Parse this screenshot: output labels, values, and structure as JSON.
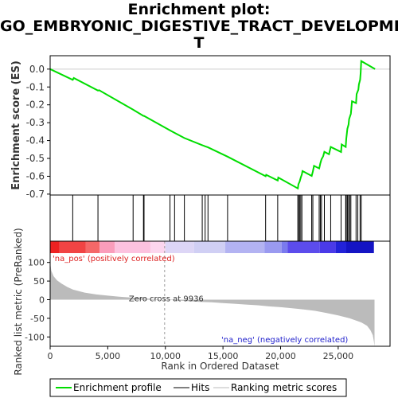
{
  "title_lines": [
    "Enrichment plot:",
    "GO_EMBRYONIC_DIGESTIVE_TRACT_DEVELOPMEN",
    "T"
  ],
  "chart_data": [
    {
      "type": "line",
      "name": "enrichment",
      "ylabel": "Enrichment score (ES)",
      "ylim": [
        -0.705,
        0.075
      ],
      "xlim": [
        0,
        29500
      ],
      "yticks": [
        0.0,
        -0.1,
        -0.2,
        -0.3,
        -0.4,
        -0.5,
        -0.6,
        -0.7
      ],
      "ytick_labels": [
        "0.0",
        "-0.1",
        "-0.2",
        "-0.3",
        "-0.4",
        "-0.5",
        "-0.6",
        "-0.7"
      ],
      "points": [
        [
          0,
          0.0
        ],
        [
          1960,
          -0.06
        ],
        [
          2050,
          -0.05
        ],
        [
          4150,
          -0.12
        ],
        [
          4250,
          -0.118
        ],
        [
          7200,
          -0.227
        ],
        [
          8100,
          -0.262
        ],
        [
          8150,
          -0.262
        ],
        [
          10400,
          -0.343
        ],
        [
          10800,
          -0.357
        ],
        [
          11650,
          -0.386
        ],
        [
          13200,
          -0.426
        ],
        [
          13450,
          -0.432
        ],
        [
          13700,
          -0.438
        ],
        [
          15400,
          -0.49
        ],
        [
          18700,
          -0.6
        ],
        [
          18750,
          -0.592
        ],
        [
          19750,
          -0.624
        ],
        [
          19800,
          -0.607
        ],
        [
          21500,
          -0.668
        ],
        [
          21550,
          -0.645
        ],
        [
          21650,
          -0.63
        ],
        [
          21750,
          -0.608
        ],
        [
          21850,
          -0.588
        ],
        [
          21900,
          -0.571
        ],
        [
          22700,
          -0.598
        ],
        [
          22800,
          -0.574
        ],
        [
          22900,
          -0.542
        ],
        [
          23350,
          -0.556
        ],
        [
          23450,
          -0.528
        ],
        [
          23550,
          -0.505
        ],
        [
          23700,
          -0.488
        ],
        [
          23800,
          -0.463
        ],
        [
          24200,
          -0.477
        ],
        [
          24350,
          -0.436
        ],
        [
          25250,
          -0.464
        ],
        [
          25300,
          -0.422
        ],
        [
          25650,
          -0.436
        ],
        [
          25700,
          -0.39
        ],
        [
          25750,
          -0.363
        ],
        [
          25800,
          -0.334
        ],
        [
          25900,
          -0.31
        ],
        [
          25950,
          -0.28
        ],
        [
          26100,
          -0.25
        ],
        [
          26200,
          -0.18
        ],
        [
          26550,
          -0.19
        ],
        [
          26600,
          -0.14
        ],
        [
          26750,
          -0.115
        ],
        [
          26800,
          -0.085
        ],
        [
          26900,
          -0.06
        ],
        [
          26950,
          -0.02
        ],
        [
          27000,
          0.045
        ],
        [
          28200,
          0.0
        ]
      ]
    },
    {
      "type": "scatter",
      "name": "hits",
      "x": [
        1960,
        4150,
        7200,
        8100,
        8150,
        10400,
        10800,
        11650,
        13200,
        13450,
        13700,
        15400,
        18700,
        19750,
        21500,
        21550,
        21650,
        21750,
        21850,
        22700,
        22800,
        23350,
        23450,
        23550,
        23800,
        24350,
        25250,
        25650,
        25700,
        25800,
        25900,
        26000,
        26100,
        26550,
        26700,
        26900,
        27000
      ]
    },
    {
      "type": "heatmap",
      "name": "rank-color-bar",
      "colors": [
        "#ee2222",
        "#f14444",
        "#f56868",
        "#fa9dbb",
        "#fcc2df",
        "#fcd6ee",
        "#ddd6f6",
        "#d0cff4",
        "#b3b3f2",
        "#9a9af0",
        "#7a7aee",
        "#5c4cec",
        "#4a3ae8",
        "#2222d8",
        "#1414c4"
      ],
      "breaks": [
        0,
        800,
        3100,
        4300,
        5600,
        8700,
        10000,
        12500,
        15200,
        18600,
        20100,
        20600,
        23400,
        24800,
        25700,
        28100
      ]
    },
    {
      "type": "area",
      "name": "ranked-list-metric",
      "ylabel": "Ranked list metric (PreRanked)",
      "xlabel": "Rank in Ordered Dataset",
      "ylim": [
        -125,
        125
      ],
      "yticks": [
        100,
        50,
        0,
        -50,
        -100
      ],
      "ytick_labels": [
        "100",
        "50",
        "0",
        "-50",
        "-100"
      ],
      "xticks": [
        0,
        5000,
        10000,
        15000,
        20000,
        25000
      ],
      "xtick_labels": [
        "0",
        "5,000",
        "10,000",
        "15,000",
        "20,000",
        "25,000"
      ],
      "points": [
        [
          0,
          100
        ],
        [
          100,
          78
        ],
        [
          300,
          63
        ],
        [
          600,
          52
        ],
        [
          1000,
          43
        ],
        [
          1500,
          34
        ],
        [
          2000,
          27
        ],
        [
          3000,
          19
        ],
        [
          4000,
          14
        ],
        [
          5000,
          11
        ],
        [
          6000,
          8
        ],
        [
          7000,
          6
        ],
        [
          8000,
          4
        ],
        [
          9000,
          2
        ],
        [
          9936,
          0
        ],
        [
          11000,
          -2
        ],
        [
          12000,
          -4
        ],
        [
          13000,
          -6
        ],
        [
          14000,
          -7
        ],
        [
          15000,
          -9
        ],
        [
          16000,
          -11
        ],
        [
          17000,
          -13
        ],
        [
          18000,
          -15
        ],
        [
          19000,
          -18
        ],
        [
          20000,
          -20
        ],
        [
          21000,
          -23
        ],
        [
          22000,
          -26
        ],
        [
          23000,
          -30
        ],
        [
          24000,
          -36
        ],
        [
          25000,
          -42
        ],
        [
          26000,
          -50
        ],
        [
          27000,
          -61
        ],
        [
          27500,
          -70
        ],
        [
          27800,
          -82
        ],
        [
          28000,
          -95
        ],
        [
          28100,
          -112
        ],
        [
          28150,
          -125
        ]
      ],
      "annotations": {
        "pos_label": "'na_pos' (positively correlated)",
        "neg_label": "'na_neg' (negatively correlated)",
        "zero_cross": "Zero cross at 9936",
        "zero_cross_x": 9936
      }
    }
  ],
  "legend": {
    "items": [
      {
        "label": "Enrichment profile",
        "color": "#00dd00"
      },
      {
        "label": "Hits",
        "color": "#000000"
      },
      {
        "label": "Ranking metric scores",
        "color": "#bbbbbb"
      }
    ]
  },
  "colors": {
    "enrichment_line": "#00dd00",
    "metric_fill": "#bbbbbb",
    "pos_label": "#dd2222",
    "neg_label": "#2222cc",
    "axis": "#000000"
  }
}
